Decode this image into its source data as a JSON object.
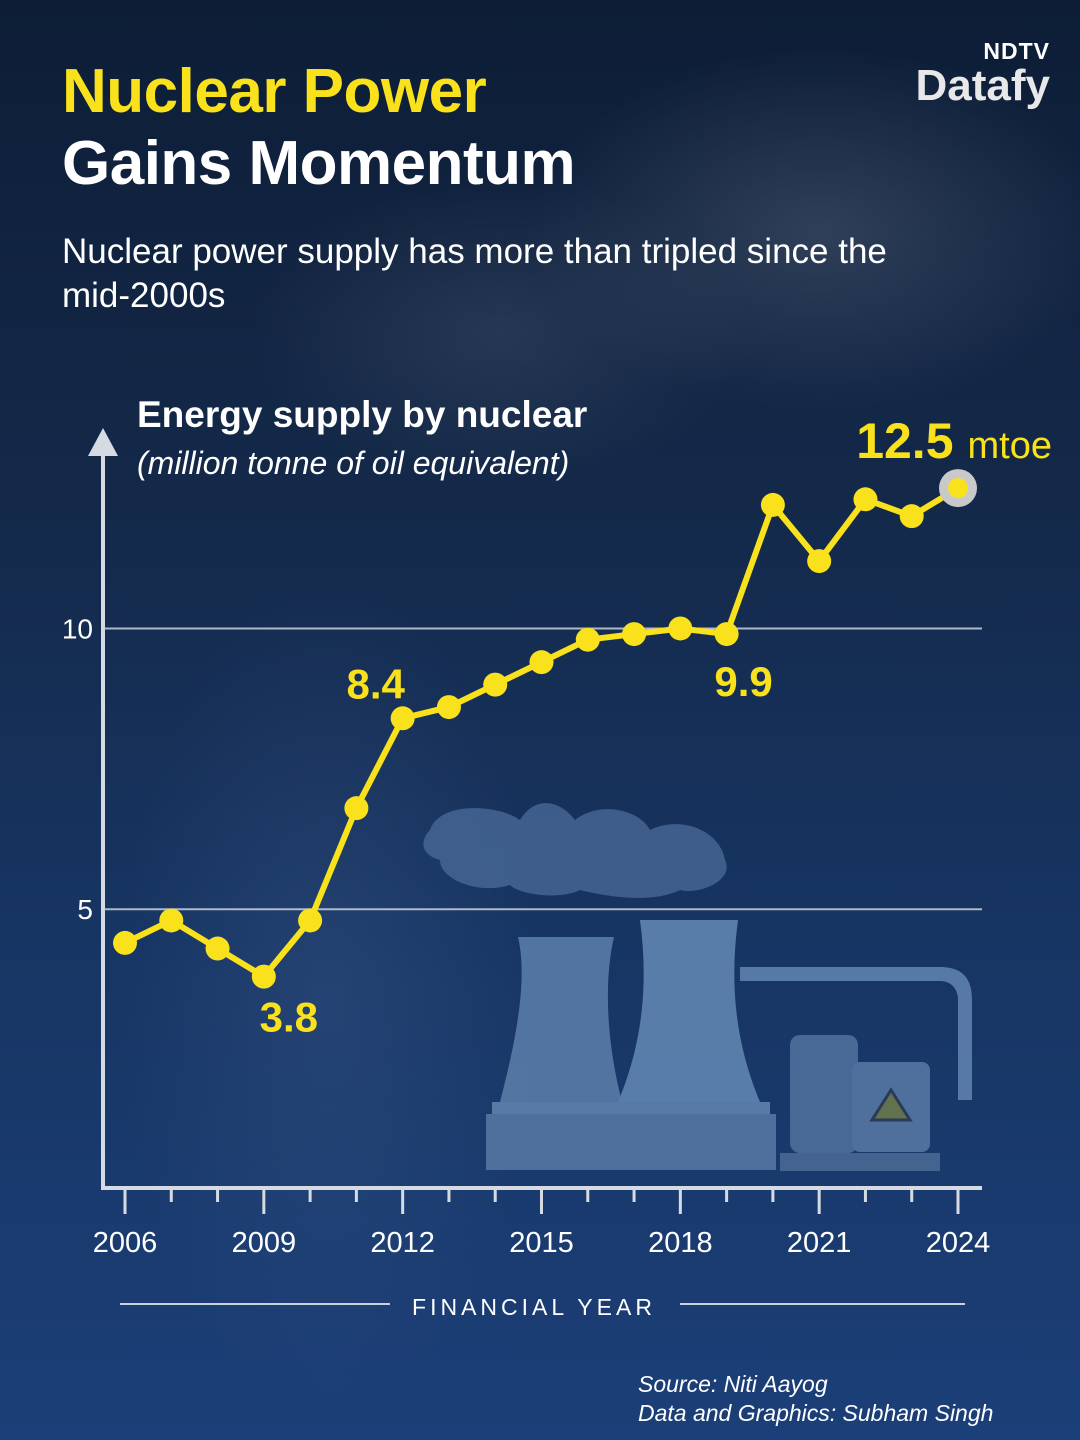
{
  "header": {
    "title_line1": "Nuclear Power",
    "title_line2": "Gains Momentum",
    "subtitle": "Nuclear power supply has more than tripled since the mid-2000s"
  },
  "logo": {
    "brand_top": "NDTV",
    "brand_bottom": "Datafy"
  },
  "footer": {
    "source": "Source: Niti Aayog",
    "credit": "Data and Graphics: Subham Singh"
  },
  "colors": {
    "accent": "#f9e21b",
    "line": "#f9e21b",
    "grid": "#c9d1dc",
    "axis": "#d6dbe3",
    "illustration": "#5a7ca8"
  },
  "chart_data": {
    "type": "line",
    "title": "Energy supply by nuclear",
    "ylabel": "(million tonne of oil equivalent)",
    "xlabel": "FINANCIAL YEAR",
    "x": [
      2006,
      2007,
      2008,
      2009,
      2010,
      2011,
      2012,
      2013,
      2014,
      2015,
      2016,
      2017,
      2018,
      2019,
      2020,
      2021,
      2022,
      2023,
      2024
    ],
    "series": [
      {
        "values": [
          4.4,
          4.8,
          4.3,
          3.8,
          4.8,
          6.8,
          8.4,
          8.6,
          9.0,
          9.4,
          9.8,
          9.9,
          10.0,
          9.9,
          12.2,
          11.2,
          12.3,
          12.0,
          12.5
        ]
      }
    ],
    "xlim": [
      2006,
      2024
    ],
    "ylim": [
      0,
      13
    ],
    "yticks": [
      5,
      10
    ],
    "xtick_labels": [
      2006,
      2009,
      2012,
      2015,
      2018,
      2021,
      2024
    ],
    "grid": true,
    "annotations": [
      {
        "x": 2009,
        "label": "3.8"
      },
      {
        "x": 2012,
        "label": "8.4"
      },
      {
        "x": 2019,
        "label": "9.9"
      }
    ],
    "highlight": {
      "x": 2024,
      "value": "12.5",
      "unit": "mtoe"
    }
  }
}
